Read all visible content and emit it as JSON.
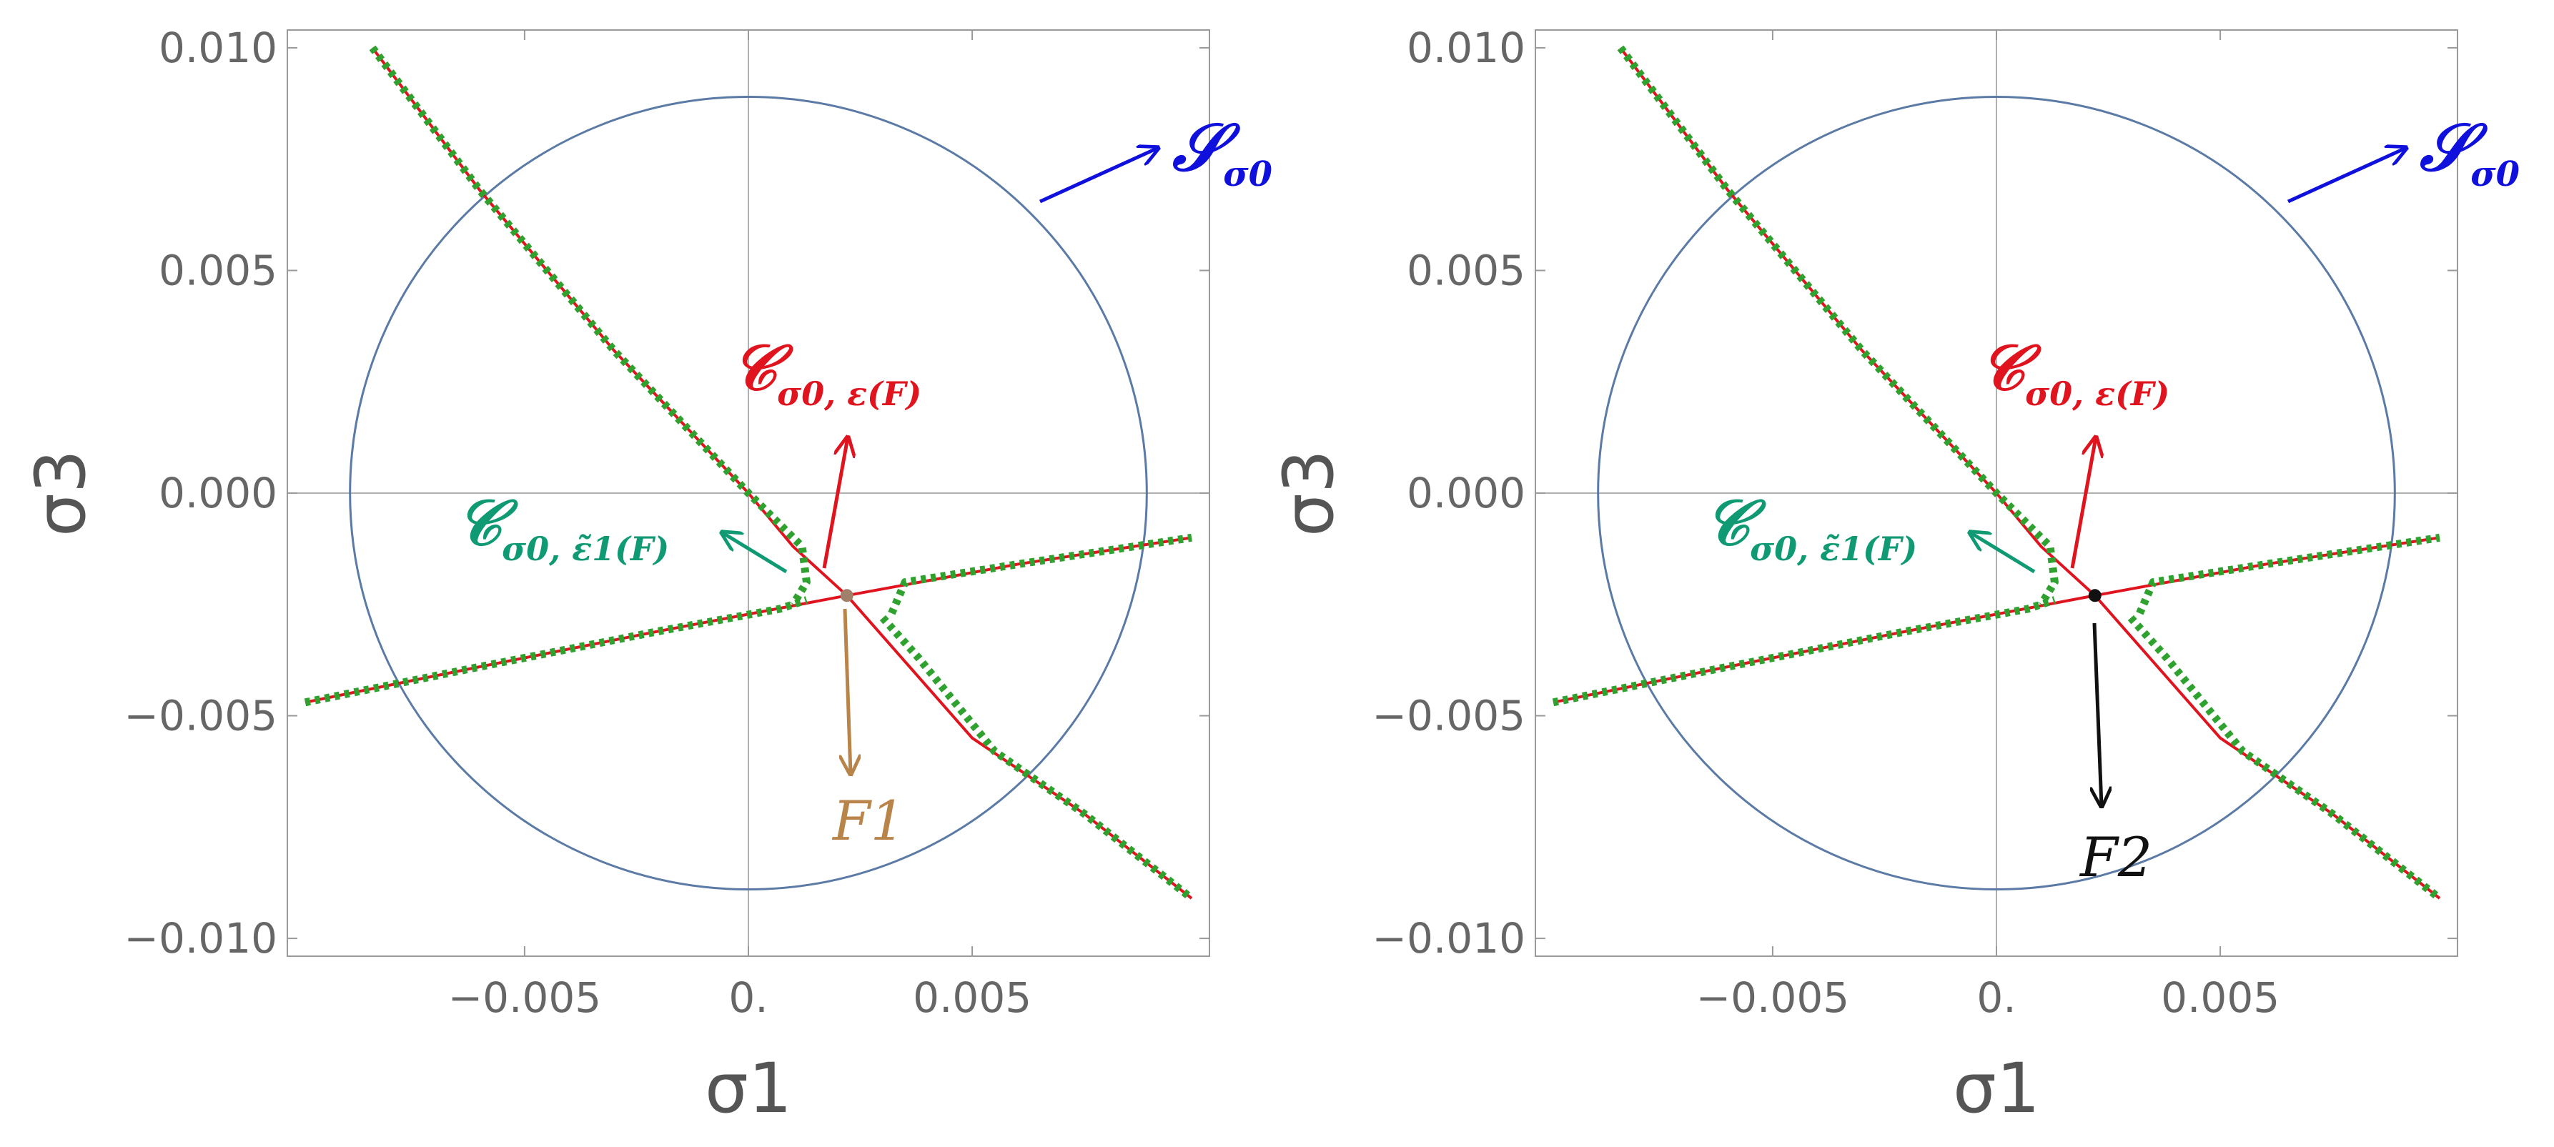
{
  "chart_data": [
    {
      "type": "line",
      "xlabel": "σ1",
      "ylabel": "σ3",
      "xlim": [
        -0.0103,
        0.0103
      ],
      "ylim": [
        -0.0104,
        0.0104
      ],
      "x_ticks": [
        -0.005,
        0,
        0.005
      ],
      "x_tick_labels": [
        "−0.005",
        "0.",
        "0.005"
      ],
      "y_ticks": [
        0.01,
        0.005,
        0,
        -0.005,
        -0.01
      ],
      "y_tick_labels": [
        "0.010",
        "0.005",
        "0.000",
        "−0.005",
        "−0.010"
      ],
      "grid": "zero lines",
      "circle": {
        "center": [
          0,
          0
        ],
        "radius": 0.0089,
        "color": "#5b7ba6"
      },
      "point": [
        0.0022,
        -0.0023
      ],
      "point_color": "#a0806a",
      "red_curves": [
        {
          "x": [
            -0.0084,
            -0.006,
            -0.003,
            0.0,
            0.001,
            0.0022
          ],
          "y": [
            0.01,
            0.0068,
            0.0032,
            0.0,
            -0.0012,
            -0.0023
          ]
        },
        {
          "x": [
            -0.0099,
            -0.006,
            -0.002,
            0.0022
          ],
          "y": [
            -0.0047,
            -0.0039,
            -0.0031,
            -0.0023
          ]
        },
        {
          "x": [
            0.0022,
            0.006,
            0.0099
          ],
          "y": [
            -0.0023,
            -0.0016,
            -0.001
          ]
        },
        {
          "x": [
            0.0022,
            0.005,
            0.0075,
            0.0099
          ],
          "y": [
            -0.0023,
            -0.0055,
            -0.0072,
            -0.0091
          ]
        }
      ],
      "green_curves": [
        {
          "x": [
            -0.0084,
            -0.006,
            -0.003,
            0.0,
            0.0012,
            0.0013,
            0.001
          ],
          "y": [
            0.01,
            0.0068,
            0.0032,
            0.0,
            -0.0012,
            -0.002,
            -0.0025
          ]
        },
        {
          "x": [
            -0.0099,
            -0.006,
            -0.002,
            0.0007,
            0.0013
          ],
          "y": [
            -0.0047,
            -0.0039,
            -0.0031,
            -0.0026,
            -0.0024
          ]
        },
        {
          "x": [
            0.0032,
            0.0035,
            0.006,
            0.0099
          ],
          "y": [
            -0.0027,
            -0.002,
            -0.0016,
            -0.001
          ]
        },
        {
          "x": [
            0.003,
            0.0038,
            0.0055,
            0.0075,
            0.0099
          ],
          "y": [
            -0.0028,
            -0.0037,
            -0.0058,
            -0.0072,
            -0.0091
          ]
        }
      ],
      "annotations": {
        "S": {
          "main": "𝒮",
          "sub": "σ0",
          "color": "#1010dd"
        },
        "C": {
          "main": "𝒞",
          "sub": "σ0, ε(F)",
          "color": "#e0141e"
        },
        "Ct": {
          "main": "𝒞",
          "sub": "σ0, ε̃1(F)",
          "color": "#0f9a73"
        },
        "F": {
          "text": "F1",
          "color": "#b8844a"
        }
      }
    },
    {
      "type": "line",
      "xlabel": "σ1",
      "ylabel": "σ3",
      "xlim": [
        -0.0103,
        0.0103
      ],
      "ylim": [
        -0.0104,
        0.0104
      ],
      "x_ticks": [
        -0.005,
        0,
        0.005
      ],
      "x_tick_labels": [
        "−0.005",
        "0.",
        "0.005"
      ],
      "y_ticks": [
        0.01,
        0.005,
        0,
        -0.005,
        -0.01
      ],
      "y_tick_labels": [
        "0.010",
        "0.005",
        "0.000",
        "−0.005",
        "−0.010"
      ],
      "grid": "zero lines",
      "circle": {
        "center": [
          0,
          0
        ],
        "radius": 0.0089,
        "color": "#5b7ba6"
      },
      "point": [
        0.0022,
        -0.0023
      ],
      "point_color": "#111111",
      "red_curves": [
        {
          "x": [
            -0.0084,
            -0.006,
            -0.003,
            0.0,
            0.001,
            0.0022
          ],
          "y": [
            0.01,
            0.0068,
            0.0032,
            0.0,
            -0.0012,
            -0.0023
          ]
        },
        {
          "x": [
            -0.0099,
            -0.006,
            -0.002,
            0.0022
          ],
          "y": [
            -0.0047,
            -0.0039,
            -0.0031,
            -0.0023
          ]
        },
        {
          "x": [
            0.0022,
            0.006,
            0.0099
          ],
          "y": [
            -0.0023,
            -0.0016,
            -0.001
          ]
        },
        {
          "x": [
            0.0022,
            0.005,
            0.0075,
            0.0099
          ],
          "y": [
            -0.0023,
            -0.0055,
            -0.0072,
            -0.0091
          ]
        }
      ],
      "green_curves": [
        {
          "x": [
            -0.0084,
            -0.006,
            -0.003,
            0.0,
            0.0012,
            0.0013,
            0.001
          ],
          "y": [
            0.01,
            0.0068,
            0.0032,
            0.0,
            -0.0012,
            -0.002,
            -0.0025
          ]
        },
        {
          "x": [
            -0.0099,
            -0.006,
            -0.002,
            0.0007,
            0.0013
          ],
          "y": [
            -0.0047,
            -0.0039,
            -0.0031,
            -0.0026,
            -0.0024
          ]
        },
        {
          "x": [
            0.0032,
            0.0035,
            0.006,
            0.0099
          ],
          "y": [
            -0.0027,
            -0.002,
            -0.0016,
            -0.001
          ]
        },
        {
          "x": [
            0.003,
            0.0038,
            0.0055,
            0.0075,
            0.0099
          ],
          "y": [
            -0.0028,
            -0.0037,
            -0.0058,
            -0.0072,
            -0.0091
          ]
        }
      ],
      "annotations": {
        "S": {
          "main": "𝒮",
          "sub": "σ0",
          "color": "#1010dd"
        },
        "C": {
          "main": "𝒞",
          "sub": "σ0, ε(F)",
          "color": "#e0141e"
        },
        "Ct": {
          "main": "𝒞",
          "sub": "σ0, ε̃1(F)",
          "color": "#0f9a73"
        },
        "F": {
          "text": "F2",
          "color": "#111111"
        }
      }
    }
  ]
}
